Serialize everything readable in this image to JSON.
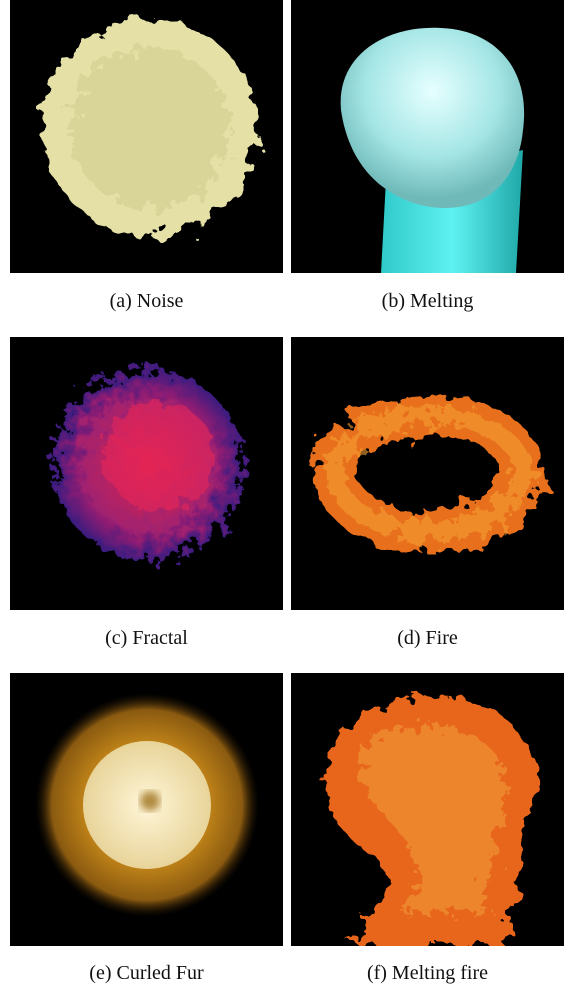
{
  "figure": {
    "panels": [
      {
        "caption": "(a) Noise"
      },
      {
        "caption": "(b) Melting"
      },
      {
        "caption": "(c) Fractal"
      },
      {
        "caption": "(d) Fire"
      },
      {
        "caption": "(e) Curled Fur"
      },
      {
        "caption": "(f) Melting fire"
      }
    ]
  }
}
